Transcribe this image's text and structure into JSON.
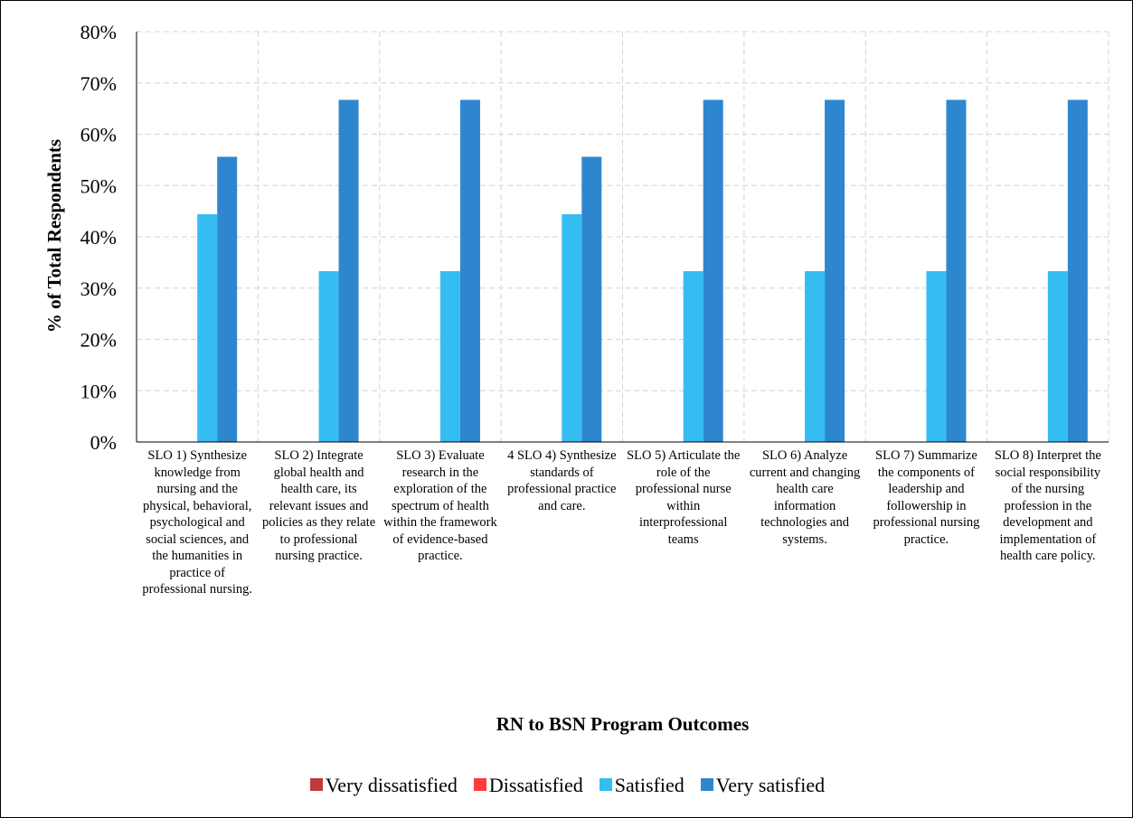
{
  "chart_data": {
    "type": "bar",
    "title": "",
    "xlabel": "RN to BSN Program Outcomes",
    "ylabel": "% of Total Respondents",
    "ylim": [
      0,
      80
    ],
    "ytick_step": 10,
    "yticks": [
      "0%",
      "10%",
      "20%",
      "30%",
      "40%",
      "50%",
      "60%",
      "70%",
      "80%"
    ],
    "grid": true,
    "legend_position": "bottom",
    "categories": [
      "SLO 1) Synthesize knowledge from nursing and the physical, behavioral, psychological and social sciences, and the humanities in practice of professional nursing.",
      "SLO 2) Integrate global health and health care, its relevant issues and policies as they relate to professional nursing practice.",
      "SLO 3) Evaluate research in the exploration of the spectrum of health within the framework of evidence-based practice.",
      "4 SLO 4) Synthesize standards of professional practice and care.",
      "SLO 5) Articulate the role of the professional nurse within interprofessional teams",
      "SLO 6) Analyze current and changing health care information technologies and systems.",
      "SLO 7) Summarize the components of leadership and followership in professional nursing practice.",
      "SLO 8) Interpret the social responsibility of the nursing profession in the development and implementation of health care policy."
    ],
    "series": [
      {
        "name": "Very dissatisfied",
        "color": "#C0393B",
        "values": [
          0,
          0,
          0,
          0,
          0,
          0,
          0,
          0
        ]
      },
      {
        "name": "Dissatisfied",
        "color": "#FF3B3B",
        "values": [
          0,
          0,
          0,
          0,
          0,
          0,
          0,
          0
        ]
      },
      {
        "name": "Satisfied",
        "color": "#35BDF2",
        "values": [
          44.4,
          33.3,
          33.3,
          44.4,
          33.3,
          33.3,
          33.3,
          33.3
        ]
      },
      {
        "name": "Very satisfied",
        "color": "#2E87CE",
        "values": [
          55.6,
          66.7,
          66.7,
          55.6,
          66.7,
          66.7,
          66.7,
          66.7
        ]
      }
    ]
  }
}
